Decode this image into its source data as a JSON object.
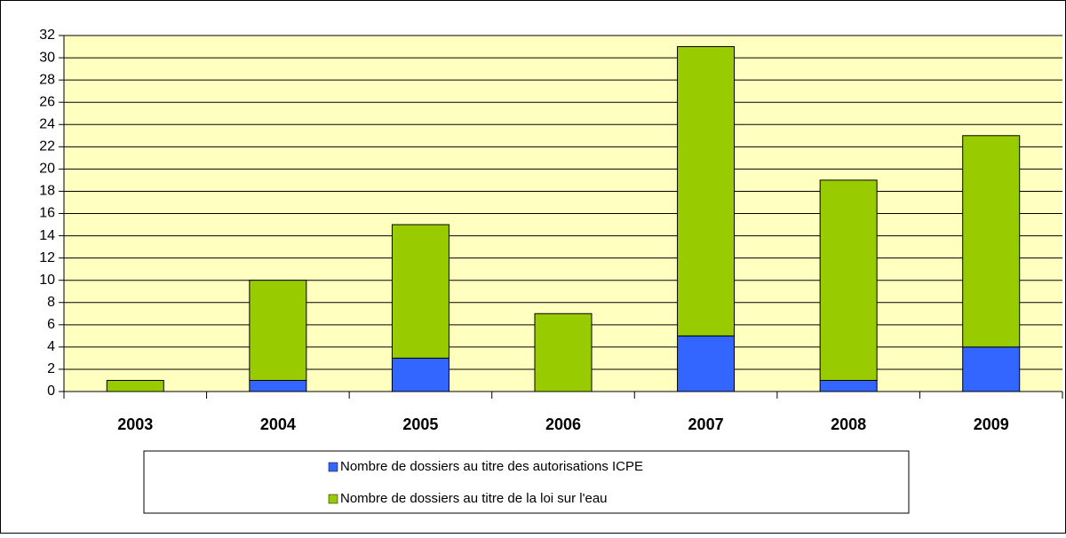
{
  "chart_data": {
    "type": "stacked_bar",
    "categories": [
      "2003",
      "2004",
      "2005",
      "2006",
      "2007",
      "2008",
      "2009"
    ],
    "series": [
      {
        "name": "Nombre de dossiers au titre des autorisations ICPE",
        "color": "#3366ff",
        "values": [
          0,
          1,
          3,
          0,
          5,
          1,
          4
        ]
      },
      {
        "name": "Nombre de dossiers au titre de la loi sur l'eau",
        "color": "#99cc00",
        "values": [
          1,
          9,
          12,
          7,
          26,
          18,
          19
        ]
      }
    ],
    "ylim": [
      0,
      32
    ],
    "yticks": [
      0,
      2,
      4,
      6,
      8,
      10,
      12,
      14,
      16,
      18,
      20,
      22,
      24,
      26,
      28,
      30,
      32
    ],
    "grid": true,
    "plot_background": "#ffffc0"
  }
}
